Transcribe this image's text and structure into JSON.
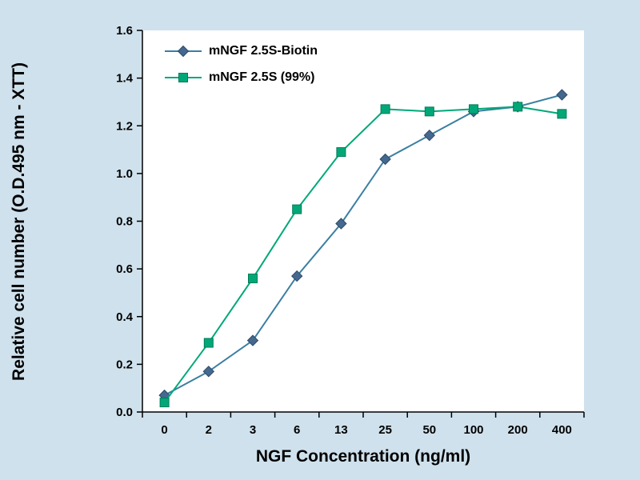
{
  "chart_data": {
    "type": "line",
    "title": "",
    "xlabel": "NGF Concentration (ng/ml)",
    "ylabel": "Relative cell number (O.D.495 nm - XTT)",
    "categories": [
      "0",
      "2",
      "3",
      "6",
      "13",
      "25",
      "50",
      "100",
      "200",
      "400"
    ],
    "ylim": [
      0,
      1.6
    ],
    "ytick_step": 0.2,
    "grid": false,
    "legend_position": "top-left-inside",
    "series": [
      {
        "name": "mNGF 2.5S-Biotin",
        "marker": "diamond",
        "color": "#3b7fa1",
        "marker_color": "#44688f",
        "marker_stroke": "#2d4a66",
        "values": [
          0.07,
          0.17,
          0.3,
          0.57,
          0.79,
          1.06,
          1.16,
          1.26,
          1.28,
          1.33
        ]
      },
      {
        "name": "mNGF 2.5S (99%)",
        "marker": "square",
        "color": "#00a878",
        "marker_color": "#00a878",
        "marker_stroke": "#007a57",
        "values": [
          0.04,
          0.29,
          0.56,
          0.85,
          1.09,
          1.27,
          1.26,
          1.27,
          1.28,
          1.25
        ]
      }
    ]
  },
  "colors": {
    "background": "#cfe1ec",
    "plot_bg": "#ffffff",
    "axis": "#000000",
    "text": "#000000"
  }
}
